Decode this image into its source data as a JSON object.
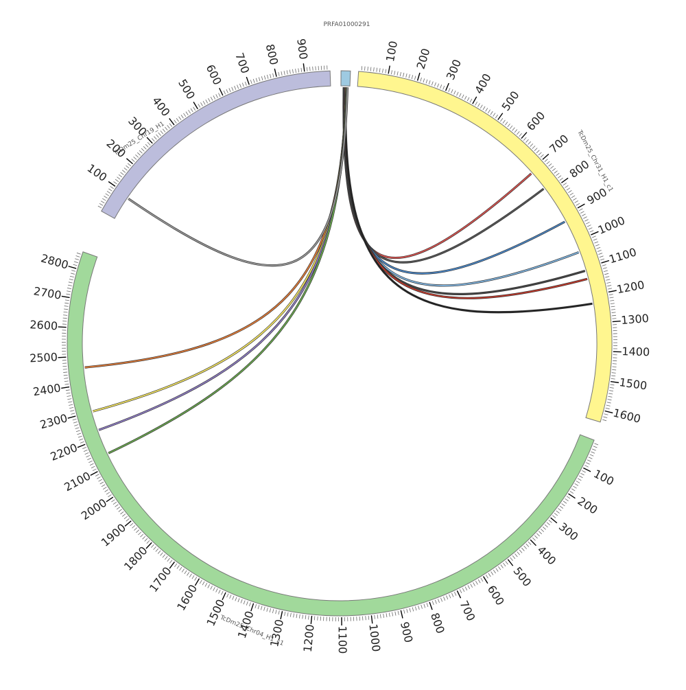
{
  "chromosomes": [
    {
      "id": "PRFA01000291",
      "label": "PRFA01000291",
      "length": 30,
      "color": "#9ecae1",
      "ticks": false
    },
    {
      "id": "chr31",
      "label": "TcDm25_Chr31_H1_c1",
      "length": 1640,
      "color": "#fff68f",
      "ticks": true,
      "tick_labels": [
        "100",
        "200",
        "300",
        "400",
        "500",
        "600",
        "700",
        "800",
        "900",
        "1000",
        "1100",
        "1200",
        "1300",
        "1400",
        "1500",
        "1600"
      ]
    },
    {
      "id": "chr04",
      "label": "TcDm25_Chr04_H1_c1",
      "length": 2860,
      "color": "#a1d99b",
      "ticks": true,
      "tick_labels": [
        "100",
        "200",
        "300",
        "400",
        "500",
        "600",
        "700",
        "800",
        "900",
        "1000",
        "1100",
        "1200",
        "1300",
        "1400",
        "1500",
        "1600",
        "1700",
        "1800",
        "1900",
        "2000",
        "2100",
        "2200",
        "2300",
        "2400",
        "2500",
        "2600",
        "2700",
        "2800"
      ]
    },
    {
      "id": "chr19",
      "label": "TcDm25_Chr19_H1",
      "length": 990,
      "color": "#bcbddc",
      "ticks": true,
      "tick_labels": [
        "100",
        "200",
        "300",
        "400",
        "500",
        "600",
        "700",
        "800",
        "900"
      ]
    }
  ],
  "links": [
    {
      "from": [
        "PRFA01000291",
        10
      ],
      "to": [
        "chr31",
        710
      ],
      "color": "#d9534f"
    },
    {
      "from": [
        "PRFA01000291",
        10
      ],
      "to": [
        "chr31",
        780
      ],
      "color": "#555555"
    },
    {
      "from": [
        "PRFA01000291",
        12
      ],
      "to": [
        "chr31",
        920
      ],
      "color": "#4a86c5"
    },
    {
      "from": [
        "PRFA01000291",
        12
      ],
      "to": [
        "chr31",
        1040
      ],
      "color": "#7fb2dc"
    },
    {
      "from": [
        "PRFA01000291",
        14
      ],
      "to": [
        "chr31",
        1110
      ],
      "color": "#444444"
    },
    {
      "from": [
        "PRFA01000291",
        14
      ],
      "to": [
        "chr31",
        1140
      ],
      "color": "#c0392b"
    },
    {
      "from": [
        "PRFA01000291",
        16
      ],
      "to": [
        "chr31",
        1230
      ],
      "color": "#222222"
    },
    {
      "from": [
        "PRFA01000291",
        18
      ],
      "to": [
        "chr04",
        2460
      ],
      "color": "#e07b39"
    },
    {
      "from": [
        "PRFA01000291",
        18
      ],
      "to": [
        "chr04",
        2300
      ],
      "color": "#f5e663"
    },
    {
      "from": [
        "PRFA01000291",
        20
      ],
      "to": [
        "chr04",
        2230
      ],
      "color": "#8e7cc3"
    },
    {
      "from": [
        "PRFA01000291",
        20
      ],
      "to": [
        "chr04",
        2140
      ],
      "color": "#6aa84f"
    },
    {
      "from": [
        "PRFA01000291",
        22
      ],
      "to": [
        "chr19",
        90
      ],
      "color": "#999999"
    }
  ]
}
